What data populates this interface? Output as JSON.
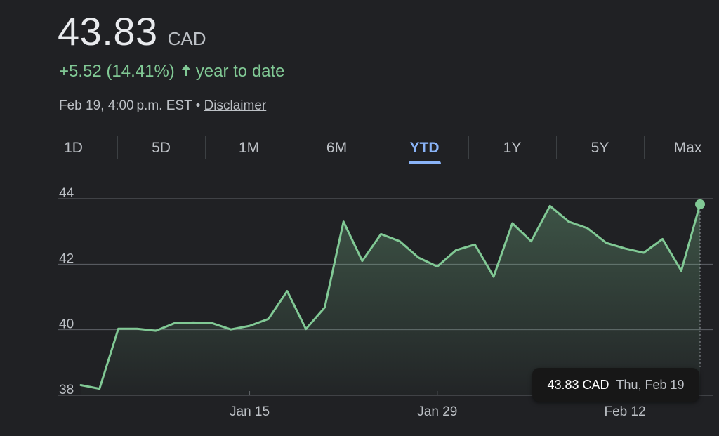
{
  "header": {
    "price": "43.83",
    "currency": "CAD",
    "change": "+5.52 (14.41%)",
    "change_period": "year to date",
    "timestamp": "Feb 19, 4:00 p.m. EST",
    "separator": "•",
    "disclaimer": "Disclaimer"
  },
  "tabs": [
    {
      "label": "1D",
      "active": false
    },
    {
      "label": "5D",
      "active": false
    },
    {
      "label": "1M",
      "active": false
    },
    {
      "label": "6M",
      "active": false
    },
    {
      "label": "YTD",
      "active": true
    },
    {
      "label": "1Y",
      "active": false
    },
    {
      "label": "5Y",
      "active": false
    },
    {
      "label": "Max",
      "active": false
    }
  ],
  "tooltip": {
    "value": "43.83 CAD",
    "date": "Thu, Feb 19"
  },
  "colors": {
    "background": "#202124",
    "line": "#81c995",
    "active_tab": "#8ab4f8"
  },
  "chart_data": {
    "type": "area",
    "x": [
      "2026-01-02",
      "2026-01-05",
      "2026-01-06",
      "2026-01-07",
      "2026-01-08",
      "2026-01-09",
      "2026-01-12",
      "2026-01-13",
      "2026-01-14",
      "2026-01-15",
      "2026-01-16",
      "2026-01-19",
      "2026-01-20",
      "2026-01-21",
      "2026-01-22",
      "2026-01-23",
      "2026-01-26",
      "2026-01-27",
      "2026-01-28",
      "2026-01-29",
      "2026-01-30",
      "2026-02-02",
      "2026-02-03",
      "2026-02-04",
      "2026-02-05",
      "2026-02-06",
      "2026-02-09",
      "2026-02-10",
      "2026-02-11",
      "2026-02-12",
      "2026-02-13",
      "2026-02-17",
      "2026-02-18",
      "2026-02-19"
    ],
    "series": [
      {
        "values": [
          38.31,
          38.2,
          40.03,
          40.03,
          39.97,
          40.2,
          40.22,
          40.2,
          40.01,
          40.12,
          40.33,
          41.18,
          40.02,
          40.68,
          43.3,
          42.1,
          42.92,
          42.7,
          42.2,
          41.93,
          42.43,
          42.6,
          41.62,
          43.25,
          42.7,
          43.78,
          43.3,
          43.1,
          42.65,
          42.48,
          42.35,
          42.77,
          41.8,
          43.83
        ]
      }
    ],
    "x_ticks": [
      {
        "x": "2026-01-15",
        "label": "Jan 15"
      },
      {
        "x": "2026-01-29",
        "label": "Jan 29"
      },
      {
        "x": "2026-02-12",
        "label": "Feb 12"
      }
    ],
    "y_ticks": [
      38,
      40,
      42,
      44
    ],
    "ylim": [
      38,
      44
    ],
    "grid": true
  }
}
